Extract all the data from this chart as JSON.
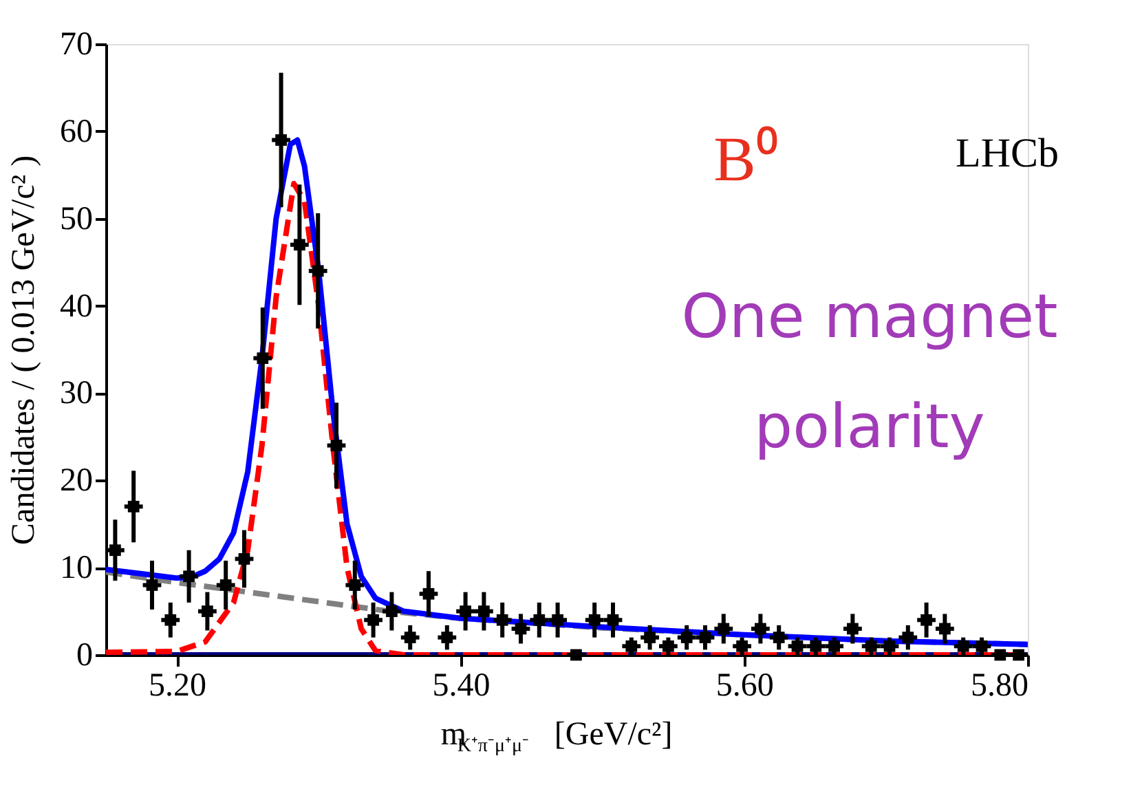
{
  "chart_data": {
    "type": "scatter",
    "xlabel": "m$_{K⁺π⁻μ⁺μ⁻}$ [GeV/c²]",
    "ylabel": "Candidates / ( 0.013 GeV/c² )",
    "annotations": [
      "B⁰",
      "LHCb",
      "One magnet polarity"
    ],
    "xlim": [
      5.15,
      5.8
    ],
    "xticks": [
      {
        "value": 5.2,
        "label": "5.20"
      },
      {
        "value": 5.4,
        "label": "5.40"
      },
      {
        "value": 5.6,
        "label": "5.60"
      },
      {
        "value": 5.8,
        "label": "5.80"
      }
    ],
    "ylim": [
      0,
      70
    ],
    "yticks": [
      0,
      10,
      20,
      30,
      40,
      50,
      60,
      70
    ],
    "grid": false,
    "series": [
      {
        "type": "line",
        "color": "#808080",
        "line_style": "dashed",
        "x": [
          5.15,
          5.2,
          5.25,
          5.3,
          5.35,
          5.4,
          5.5,
          5.6,
          5.7,
          5.8
        ],
        "values": [
          9.5,
          8.3,
          7.2,
          6.1,
          5.0,
          4.2,
          3.1,
          2.3,
          1.6,
          1.2
        ]
      },
      {
        "type": "line",
        "color": "#000080",
        "line_style": "solid",
        "x": [
          5.15,
          5.8
        ],
        "values": [
          0,
          0
        ]
      },
      {
        "type": "line",
        "color": "#ff0000",
        "line_style": "dashed",
        "x": [
          5.15,
          5.2,
          5.22,
          5.24,
          5.25,
          5.26,
          5.27,
          5.2825,
          5.29,
          5.3,
          5.31,
          5.32,
          5.33,
          5.34,
          5.36,
          5.8
        ],
        "values": [
          0.3,
          0.4,
          1.5,
          6,
          12,
          24,
          41,
          54,
          52,
          40,
          24,
          10,
          3,
          0.5,
          0,
          0
        ]
      },
      {
        "type": "line",
        "color": "#0000ff",
        "line_style": "solid",
        "x": [
          5.15,
          5.18,
          5.2,
          5.21,
          5.22,
          5.23,
          5.24,
          5.25,
          5.26,
          5.27,
          5.28,
          5.285,
          5.29,
          5.3,
          5.31,
          5.32,
          5.33,
          5.34,
          5.36,
          5.4,
          5.5,
          5.6,
          5.7,
          5.8
        ],
        "values": [
          9.8,
          9.2,
          8.8,
          8.9,
          9.6,
          11,
          14,
          21,
          34,
          50,
          58.5,
          59,
          56,
          44,
          28,
          15,
          9,
          6.5,
          5,
          4.2,
          3.2,
          2.3,
          1.6,
          1.2
        ]
      },
      {
        "type": "scatter",
        "color": "#000000",
        "marker": "square",
        "x": [
          5.1565,
          5.1695,
          5.1825,
          5.1955,
          5.2085,
          5.2215,
          5.2345,
          5.2475,
          5.2605,
          5.2735,
          5.2865,
          5.2995,
          5.3125,
          5.3255,
          5.3385,
          5.3515,
          5.3645,
          5.3775,
          5.3905,
          5.4035,
          5.4165,
          5.4295,
          5.4425,
          5.4555,
          5.4685,
          5.4815,
          5.4945,
          5.5075,
          5.5205,
          5.5335,
          5.5465,
          5.5595,
          5.5725,
          5.5855,
          5.5985,
          5.6115,
          5.6245,
          5.6375,
          5.6505,
          5.6635,
          5.6765,
          5.6895,
          5.7025,
          5.7155,
          5.7285,
          5.7415,
          5.7545,
          5.7675,
          5.7805,
          5.7935
        ],
        "values": [
          12,
          17,
          8,
          4,
          9,
          5,
          8,
          11,
          34,
          59,
          47,
          44,
          24,
          8,
          4,
          5,
          2,
          7,
          2,
          5,
          5,
          4,
          3,
          4,
          4,
          0,
          4,
          4,
          1,
          2,
          1,
          2,
          2,
          3,
          1,
          3,
          2,
          1,
          1,
          1,
          3,
          1,
          1,
          2,
          4,
          3,
          1,
          1,
          0,
          0
        ],
        "errors": [
          3.5,
          4.1,
          2.8,
          2,
          3,
          2.2,
          2.8,
          3.3,
          5.8,
          7.7,
          6.9,
          6.6,
          4.9,
          2.8,
          2,
          2.2,
          1.4,
          2.6,
          1.4,
          2.2,
          2.2,
          2,
          1.7,
          2,
          2,
          null,
          2,
          2,
          1,
          1.4,
          1,
          1.4,
          1.4,
          1.7,
          1,
          1.7,
          1.4,
          1,
          1,
          1,
          1.7,
          1,
          1,
          1.4,
          2,
          1.7,
          1,
          1,
          null,
          null
        ],
        "xerrors": [
          0.0065,
          0.0065,
          0.0065,
          0.0065,
          0.0065,
          0.0065,
          0.0065,
          0.0065,
          0.0065,
          0.0065,
          0.0065,
          0.0065,
          0.0065,
          0.0065,
          0.0065,
          0.0065,
          0.0065,
          0.0065,
          0.0065,
          0.0065,
          0.0065,
          0.0065,
          0.0065,
          0.0065,
          0.0065,
          0.0065,
          0.0065,
          0.0065,
          0.0065,
          0.0065,
          0.0065,
          0.0065,
          0.0065,
          0.0065,
          0.0065,
          0.0065,
          0.0065,
          0.0065,
          0.0065,
          0.0065,
          0.0065,
          0.0065,
          0.0065,
          0.0065,
          0.0065,
          0.0065,
          0.0065,
          0.0065,
          0.0065,
          0.0065
        ]
      }
    ]
  }
}
